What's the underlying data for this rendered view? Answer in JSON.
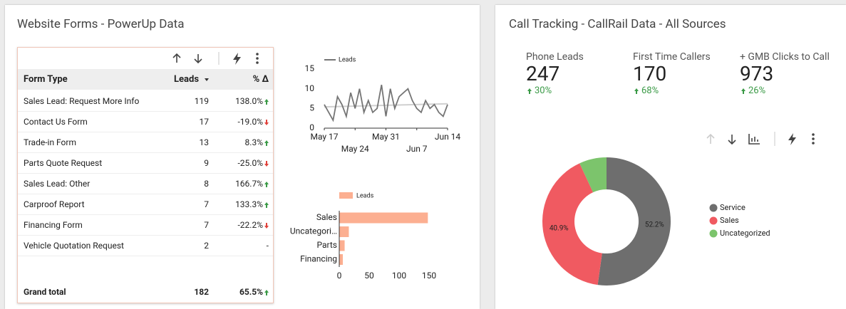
{
  "left_panel": {
    "title": "Website Forms - PowerUp Data",
    "table": {
      "columns": [
        "Form Type",
        "Leads",
        "% Δ"
      ],
      "rows": [
        {
          "form_type": "Sales Lead: Request More Info",
          "leads": 119,
          "change": "138.0%",
          "trend": "up"
        },
        {
          "form_type": "Contact Us Form",
          "leads": 17,
          "change": "-19.0%",
          "trend": "down"
        },
        {
          "form_type": "Trade-in Form",
          "leads": 13,
          "change": "8.3%",
          "trend": "up"
        },
        {
          "form_type": "Parts Quote Request",
          "leads": 9,
          "change": "-25.0%",
          "trend": "down"
        },
        {
          "form_type": "Sales Lead: Other",
          "leads": 8,
          "change": "166.7%",
          "trend": "up"
        },
        {
          "form_type": "Carproof Report",
          "leads": 7,
          "change": "133.3%",
          "trend": "up"
        },
        {
          "form_type": "Financing Form",
          "leads": 7,
          "change": "-22.2%",
          "trend": "down"
        },
        {
          "form_type": "Vehicle Quotation Request",
          "leads": 2,
          "change": "-",
          "trend": null
        }
      ],
      "total": {
        "label": "Grand total",
        "leads": 182,
        "change": "65.5%",
        "trend": "up"
      }
    },
    "line_chart": {
      "type": "line",
      "categories": [
        "May 17",
        null,
        null,
        null,
        null,
        null,
        null,
        "May 24",
        null,
        null,
        null,
        null,
        null,
        null,
        "May 31",
        null,
        null,
        null,
        null,
        null,
        null,
        "Jun 7",
        null,
        null,
        null,
        null,
        null,
        null,
        "Jun 14"
      ],
      "series": [
        {
          "name": "Leads",
          "color": "#757575",
          "values": [
            6,
            4,
            2,
            8,
            6,
            3,
            9,
            5,
            10,
            4,
            7,
            4,
            5,
            11,
            3,
            10,
            5,
            8,
            9,
            10,
            7,
            5,
            4,
            7,
            5,
            6,
            4,
            3,
            6
          ]
        }
      ],
      "trendline": {
        "color": "#d0d0d0",
        "values": [
          5.4,
          6.2
        ]
      },
      "ylim": [
        0,
        15
      ],
      "yticks": [
        0,
        5,
        10,
        15
      ]
    },
    "bar_chart": {
      "type": "bar",
      "orientation": "horizontal",
      "categories": [
        "Sales",
        "Uncategori…",
        "Parts",
        "Financing"
      ],
      "series": [
        {
          "name": "Leads",
          "color": "#fcaf91",
          "values": [
            148,
            16,
            9,
            6
          ]
        }
      ],
      "xlim": [
        0,
        150
      ],
      "xticks": [
        0,
        50,
        100,
        150
      ]
    }
  },
  "right_panel": {
    "title": "Call Tracking - CallRail Data - All Sources",
    "scorecards": [
      {
        "label": "Phone Leads",
        "value": 247,
        "change": "30%",
        "trend": "up"
      },
      {
        "label": "First Time Callers",
        "value": 170,
        "change": "68%",
        "trend": "up"
      },
      {
        "label": "+ GMB Clicks to Call",
        "value": 973,
        "change": "26%",
        "trend": "up"
      }
    ],
    "donut": {
      "type": "pie",
      "donut": true,
      "categories": [
        "Service",
        "Sales",
        "Uncategorized"
      ],
      "values": [
        52.2,
        40.9,
        6.9
      ],
      "value_labels": [
        "52.2%",
        "40.9%",
        null
      ],
      "colors": [
        "#6e6e6e",
        "#f05a61",
        "#7cc46c"
      ],
      "legend": "right"
    }
  }
}
